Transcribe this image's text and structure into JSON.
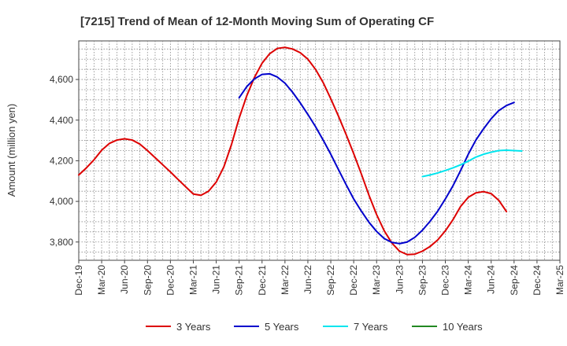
{
  "chart_data": {
    "type": "line",
    "title": "[7215]  Trend of Mean of 12-Month Moving Sum of Operating CF",
    "xlabel": "",
    "ylabel": "Amount (million yen)",
    "ylim": [
      3710,
      4790
    ],
    "y_ticks": [
      3800,
      4000,
      4200,
      4400,
      4600
    ],
    "y_tick_labels": [
      "3,800",
      "4,000",
      "4,200",
      "4,400",
      "4,600"
    ],
    "x_tick_labels": [
      "Dec-19",
      "Mar-20",
      "Jun-20",
      "Sep-20",
      "Dec-20",
      "Mar-21",
      "Jun-21",
      "Sep-21",
      "Dec-21",
      "Mar-22",
      "Jun-22",
      "Sep-22",
      "Dec-22",
      "Mar-23",
      "Jun-23",
      "Sep-23",
      "Dec-23",
      "Mar-24",
      "Jun-24",
      "Sep-24",
      "Dec-24",
      "Mar-25"
    ],
    "grid": true,
    "legend_position": "bottom",
    "series": [
      {
        "name": "3 Years",
        "color": "#dd0000",
        "start_index": 0,
        "values": [
          4130,
          4165,
          4205,
          4252,
          4285,
          4302,
          4308,
          4302,
          4282,
          4250,
          4215,
          4180,
          4145,
          4108,
          4072,
          4036,
          4030,
          4050,
          4095,
          4170,
          4280,
          4410,
          4520,
          4610,
          4680,
          4727,
          4753,
          4758,
          4750,
          4732,
          4700,
          4650,
          4585,
          4505,
          4420,
          4330,
          4235,
          4135,
          4030,
          3935,
          3855,
          3795,
          3755,
          3738,
          3740,
          3755,
          3778,
          3810,
          3855,
          3910,
          3975,
          4020,
          4042,
          4048,
          4038,
          4005,
          3950
        ]
      },
      {
        "name": "5 Years",
        "color": "#0000cc",
        "start_index": 21,
        "values": [
          4510,
          4565,
          4603,
          4625,
          4628,
          4612,
          4582,
          4537,
          4485,
          4428,
          4368,
          4302,
          4232,
          4157,
          4083,
          4012,
          3952,
          3897,
          3852,
          3817,
          3798,
          3792,
          3800,
          3823,
          3858,
          3902,
          3952,
          4012,
          4077,
          4152,
          4232,
          4302,
          4357,
          4407,
          4447,
          4472,
          4487
        ]
      },
      {
        "name": "7 Years",
        "color": "#00e5ee",
        "start_index": 45,
        "values": [
          4122,
          4130,
          4140,
          4152,
          4165,
          4180,
          4198,
          4218,
          4232,
          4242,
          4250,
          4252,
          4250,
          4248
        ]
      },
      {
        "name": "10 Years",
        "color": "#228822",
        "start_index": 0,
        "values": []
      }
    ]
  }
}
